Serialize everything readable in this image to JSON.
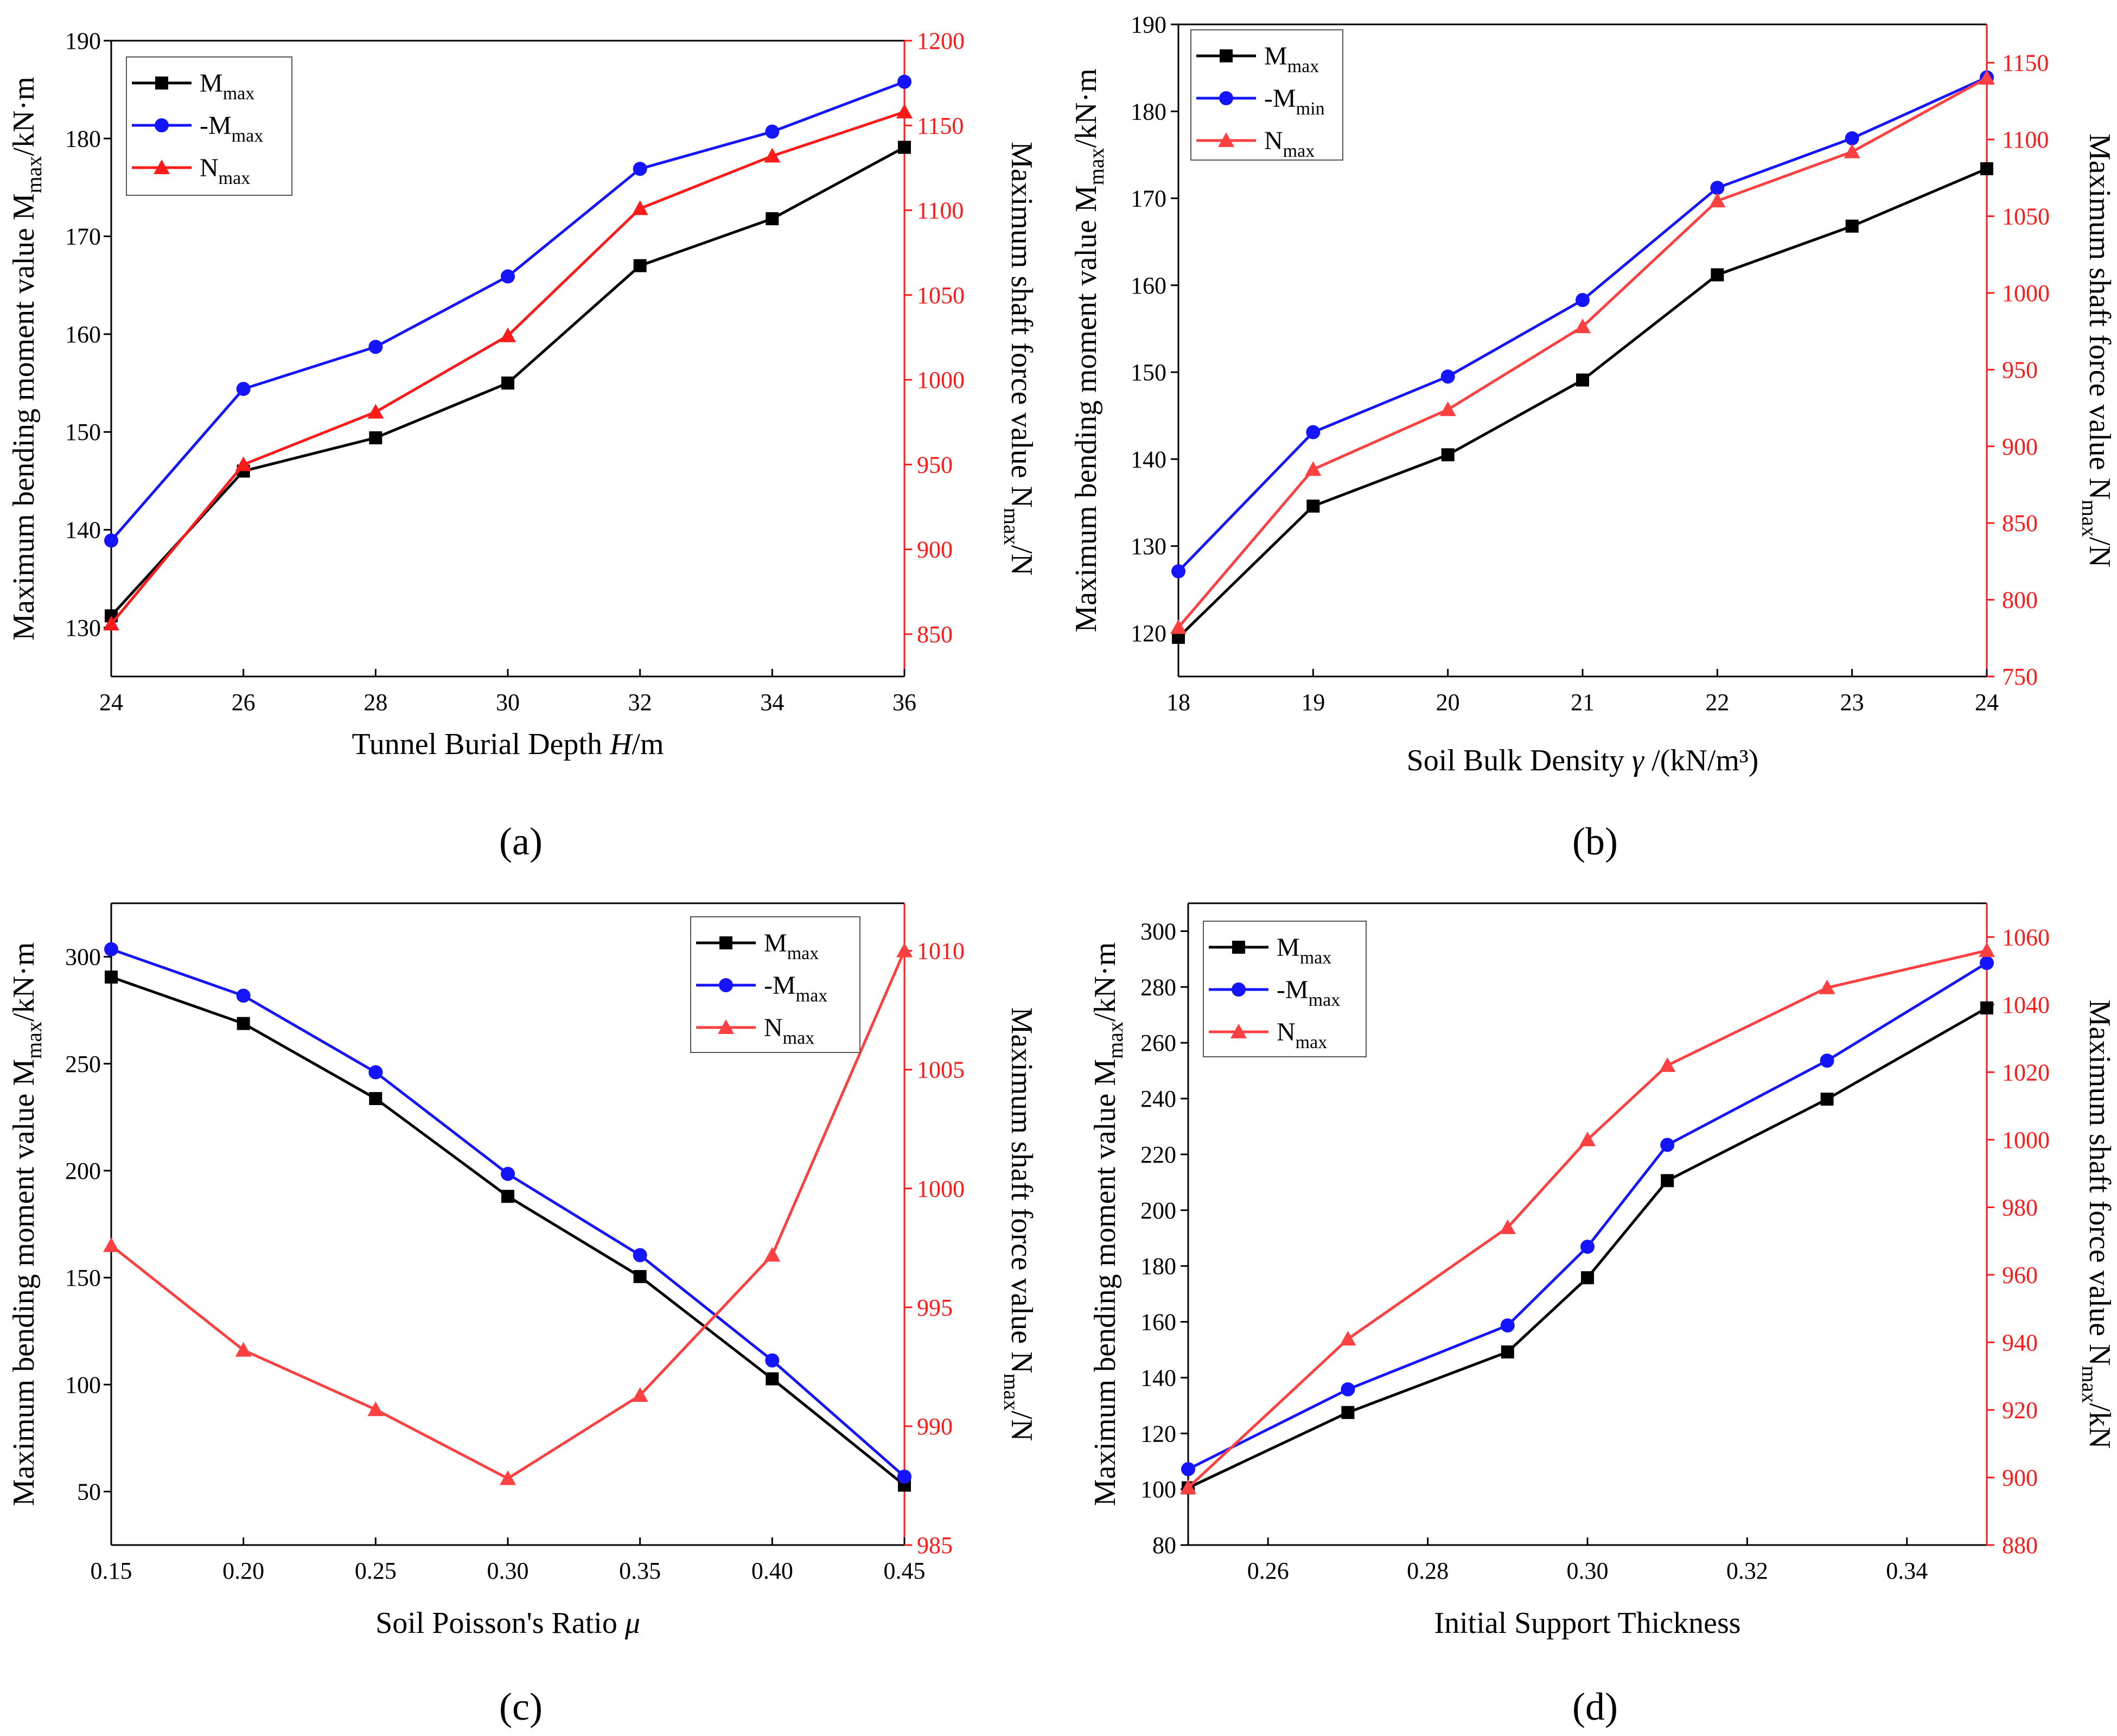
{
  "colors": {
    "mmax": "#000000",
    "mmin": "#1414ff",
    "nmax": "#ff1a1a",
    "frame": "#000000",
    "right_axis": "#ff1a1a"
  },
  "chart_data": [
    {
      "id": "a",
      "type": "line",
      "caption": "(a)",
      "xlabel": {
        "text": "Tunnel Burial Depth ",
        "var": "H",
        "unit": "/m"
      },
      "ylabel_left": {
        "pre": "Maximum bending moment value M",
        "sub": "max",
        "post": "/kN·m"
      },
      "ylabel_right": {
        "pre": "Maximum shaft force value N",
        "sub": "max",
        "post": "/N"
      },
      "x": [
        24,
        26,
        28,
        30,
        32,
        34,
        36
      ],
      "xlim": [
        24,
        36
      ],
      "xticks": [
        24,
        26,
        28,
        30,
        32,
        34,
        36
      ],
      "xtick_labels": [
        "24",
        "26",
        "28",
        "30",
        "32",
        "34",
        "36"
      ],
      "ylim_left": [
        125,
        190
      ],
      "yticks_left": [
        130,
        140,
        150,
        160,
        170,
        180,
        190
      ],
      "ytick_labels_left": [
        "130",
        "140",
        "150",
        "160",
        "170",
        "180",
        "190"
      ],
      "ylim_right": [
        825,
        1200
      ],
      "yticks_right": [
        850,
        900,
        950,
        1000,
        1050,
        1100,
        1150,
        1200
      ],
      "ytick_labels_right": [
        "850",
        "900",
        "950",
        "1000",
        "1050",
        "1100",
        "1150",
        "1200"
      ],
      "legend_position": "top-left",
      "series": [
        {
          "name": "M",
          "sub": "max",
          "axis": "left",
          "marker": "square",
          "color": "#000000",
          "values": [
            131.2,
            146.0,
            149.4,
            155.0,
            167.0,
            171.8,
            179.1
          ]
        },
        {
          "name": "-M",
          "sub": "max",
          "axis": "left",
          "marker": "circle",
          "color": "#1414ff",
          "values": [
            138.9,
            154.4,
            158.7,
            165.9,
            176.9,
            180.7,
            185.8
          ]
        },
        {
          "name": "N",
          "sub": "max",
          "axis": "right",
          "marker": "triangle",
          "color": "#ff1a1a",
          "values": [
            856,
            950,
            981,
            1026,
            1101,
            1132,
            1158
          ]
        }
      ]
    },
    {
      "id": "b",
      "type": "line",
      "caption": "(b)",
      "xlabel": {
        "text": "Soil Bulk Density  ",
        "var": "γ",
        "unit": " /(kN/m³)"
      },
      "ylabel_left": {
        "pre": "Maximum bending moment value M",
        "sub": "max",
        "post": "/kN·m"
      },
      "ylabel_right": {
        "pre": "Maximum shaft force value N",
        "sub": "max",
        "post": "/N"
      },
      "x": [
        18,
        19,
        20,
        21,
        22,
        23,
        24
      ],
      "xlim": [
        18,
        24
      ],
      "xticks": [
        18,
        19,
        20,
        21,
        22,
        23,
        24
      ],
      "xtick_labels": [
        "18",
        "19",
        "20",
        "21",
        "22",
        "23",
        "24"
      ],
      "ylim_left": [
        115,
        190
      ],
      "yticks_left": [
        120,
        130,
        140,
        150,
        160,
        170,
        180,
        190
      ],
      "ytick_labels_left": [
        "120",
        "130",
        "140",
        "150",
        "160",
        "170",
        "180",
        "190"
      ],
      "ylim_right": [
        750,
        1175
      ],
      "yticks_right": [
        750,
        800,
        850,
        900,
        950,
        1000,
        1050,
        1100,
        1150
      ],
      "ytick_labels_right": [
        "750",
        "800",
        "850",
        "900",
        "950",
        "1000",
        "1050",
        "1100",
        "1150"
      ],
      "legend_position": "top-left",
      "series": [
        {
          "name": "M",
          "sub": "max",
          "axis": "left",
          "marker": "square",
          "color": "#000000",
          "values": [
            119.5,
            134.6,
            140.5,
            149.1,
            161.2,
            166.8,
            173.4
          ]
        },
        {
          "name": "-M",
          "sub": "min",
          "axis": "left",
          "marker": "circle",
          "color": "#1414ff",
          "values": [
            127.1,
            143.1,
            149.5,
            158.3,
            171.2,
            176.9,
            183.9
          ]
        },
        {
          "name": "N",
          "sub": "max",
          "axis": "right",
          "marker": "triangle",
          "color": "#ff4040",
          "values": [
            782,
            885,
            924,
            978,
            1060,
            1092,
            1140
          ]
        }
      ]
    },
    {
      "id": "c",
      "type": "line",
      "caption": "(c)",
      "xlabel": {
        "text": "Soil Poisson's Ratio ",
        "var": "μ",
        "unit": ""
      },
      "ylabel_left": {
        "pre": "Maximum bending moment value M",
        "sub": "max",
        "post": "/kN·m"
      },
      "ylabel_right": {
        "pre": "Maximum shaft force value N",
        "sub": "max",
        "post": "/N"
      },
      "x": [
        0.15,
        0.2,
        0.25,
        0.3,
        0.35,
        0.4,
        0.45
      ],
      "xlim": [
        0.15,
        0.45
      ],
      "xticks": [
        0.15,
        0.2,
        0.25,
        0.3,
        0.35,
        0.4,
        0.45
      ],
      "xtick_labels": [
        "0.15",
        "0.20",
        "0.25",
        "0.30",
        "0.35",
        "0.40",
        "0.45"
      ],
      "ylim_left": [
        25,
        325
      ],
      "yticks_left": [
        50,
        100,
        150,
        200,
        250,
        300
      ],
      "ytick_labels_left": [
        "50",
        "100",
        "150",
        "200",
        "250",
        "300"
      ],
      "ylim_right": [
        985,
        1012
      ],
      "yticks_right": [
        985,
        990,
        995,
        1000,
        1005,
        1010
      ],
      "ytick_labels_right": [
        "985",
        "990",
        "995",
        "1000",
        "1005",
        "1010"
      ],
      "legend_position": "top-right",
      "series": [
        {
          "name": "M",
          "sub": "max",
          "axis": "left",
          "marker": "square",
          "color": "#000000",
          "values": [
            290.5,
            268.8,
            233.7,
            188.0,
            150.5,
            102.7,
            53.0
          ]
        },
        {
          "name": "-M",
          "sub": "max",
          "axis": "left",
          "marker": "circle",
          "color": "#1414ff",
          "values": [
            303.5,
            281.8,
            246.0,
            198.5,
            160.5,
            111.3,
            57.0
          ]
        },
        {
          "name": "N",
          "sub": "max",
          "axis": "right",
          "marker": "triangle",
          "color": "#ff4040",
          "values": [
            997.6,
            993.2,
            990.7,
            987.8,
            991.3,
            997.2,
            1010.0
          ]
        }
      ]
    },
    {
      "id": "d",
      "type": "line",
      "caption": "(d)",
      "xlabel": {
        "text": "Initial Support Thickness",
        "var": "",
        "unit": ""
      },
      "ylabel_left": {
        "pre": "Maximum bending moment value M",
        "sub": "max",
        "post": "/kN·m"
      },
      "ylabel_right": {
        "pre": "Maximum shaft force value N",
        "sub": "max",
        "post": "/kN"
      },
      "x": [
        0.25,
        0.27,
        0.29,
        0.3,
        0.31,
        0.33,
        0.35
      ],
      "xlim": [
        0.25,
        0.35
      ],
      "xticks": [
        0.26,
        0.28,
        0.3,
        0.32,
        0.34
      ],
      "xtick_labels": [
        "0.26",
        "0.28",
        "0.30",
        "0.32",
        "0.34"
      ],
      "ylim_left": [
        80,
        310
      ],
      "yticks_left": [
        80,
        100,
        120,
        140,
        160,
        180,
        200,
        220,
        240,
        260,
        280,
        300
      ],
      "ytick_labels_left": [
        "80",
        "100",
        "120",
        "140",
        "160",
        "180",
        "200",
        "220",
        "240",
        "260",
        "280",
        "300"
      ],
      "ylim_right": [
        880,
        1070
      ],
      "yticks_right": [
        880,
        900,
        920,
        940,
        960,
        980,
        1000,
        1020,
        1040,
        1060
      ],
      "ytick_labels_right": [
        "880",
        "900",
        "920",
        "940",
        "960",
        "980",
        "1000",
        "1020",
        "1040",
        "1060"
      ],
      "legend_position": "top-left",
      "series": [
        {
          "name": "M",
          "sub": "max",
          "axis": "left",
          "marker": "square",
          "color": "#000000",
          "values": [
            100.5,
            127.5,
            149.2,
            175.8,
            210.6,
            239.8,
            272.5
          ]
        },
        {
          "name": "-M",
          "sub": "max",
          "axis": "left",
          "marker": "circle",
          "color": "#1414ff",
          "values": [
            107.2,
            135.8,
            158.7,
            186.9,
            223.4,
            253.6,
            288.6
          ]
        },
        {
          "name": "N",
          "sub": "max",
          "axis": "right",
          "marker": "triangle",
          "color": "#ff4040",
          "values": [
            897,
            941,
            974,
            1000,
            1022,
            1045,
            1056
          ]
        }
      ]
    }
  ]
}
